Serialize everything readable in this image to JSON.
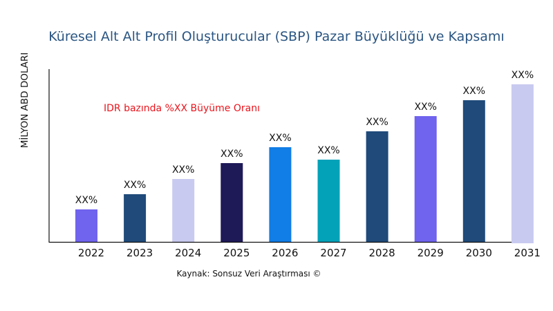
{
  "chart_data": {
    "type": "bar",
    "title": "Küresel Alt Alt Profil Oluşturucular (SBP) Pazar Büyüklüğü ve Kapsamı",
    "ylabel": "MİLYON ABD DOLARI",
    "xlabel": "",
    "categories": [
      "2022",
      "2023",
      "2024",
      "2025",
      "2026",
      "2027",
      "2028",
      "2029",
      "2030",
      "2031"
    ],
    "values": [
      47,
      69,
      91,
      114,
      137,
      119,
      160,
      182,
      205,
      228
    ],
    "data_labels": [
      "XX%",
      "XX%",
      "XX%",
      "XX%",
      "XX%",
      "XX%",
      "XX%",
      "XX%",
      "XX%",
      "XX%"
    ],
    "colors": [
      "#7063ee",
      "#1f4a7a",
      "#c9caf0",
      "#1e1957",
      "#117de6",
      "#03a2b9",
      "#1f4a7a",
      "#7063ee",
      "#1f4a7a",
      "#c9caf0"
    ],
    "annotation": "IDR bazında %XX Büyüme Oranı",
    "annotation_color": "#e8141c",
    "source": "Kaynak: Sonsuz Veri Araştırması ©",
    "grid": false,
    "legend": "none"
  }
}
